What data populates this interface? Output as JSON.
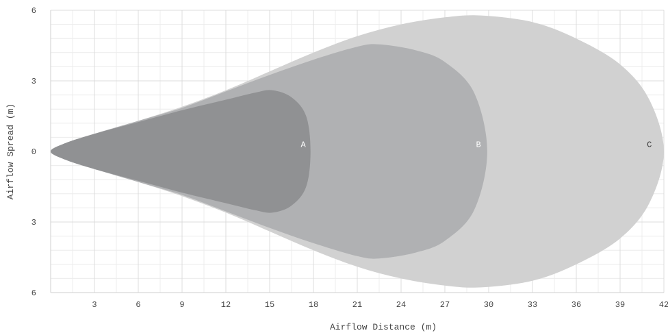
{
  "chart_data": {
    "type": "area",
    "xlabel": "Airflow Distance (m)",
    "ylabel": "Airflow Spread (m)",
    "xlim": [
      0,
      42
    ],
    "ylim": [
      -6,
      6
    ],
    "x_ticks": [
      3,
      6,
      9,
      12,
      15,
      18,
      21,
      24,
      27,
      30,
      33,
      36,
      39,
      42
    ],
    "y_ticks": [
      {
        "value": 6,
        "label": "6"
      },
      {
        "value": 3,
        "label": "3"
      },
      {
        "value": 0,
        "label": "0"
      },
      {
        "value": -3,
        "label": "3"
      },
      {
        "value": -6,
        "label": "6"
      }
    ],
    "grid": true,
    "zones": [
      {
        "name": "C",
        "color": "#d1d1d1",
        "label_position": [
          41,
          0.3
        ],
        "outline": [
          [
            0,
            0
          ],
          [
            1,
            0.35
          ],
          [
            3,
            0.75
          ],
          [
            6,
            1.3
          ],
          [
            9,
            1.9
          ],
          [
            12,
            2.6
          ],
          [
            15,
            3.4
          ],
          [
            18,
            4.2
          ],
          [
            21,
            4.9
          ],
          [
            24,
            5.4
          ],
          [
            27,
            5.7
          ],
          [
            29.5,
            5.78
          ],
          [
            33,
            5.5
          ],
          [
            36,
            4.8
          ],
          [
            39,
            3.7
          ],
          [
            41,
            2.2
          ],
          [
            42,
            0
          ]
        ]
      },
      {
        "name": "B",
        "color": "#b0b1b3",
        "label_position": [
          29.3,
          0.3
        ],
        "outline": [
          [
            0,
            0
          ],
          [
            1,
            0.35
          ],
          [
            3,
            0.75
          ],
          [
            6,
            1.3
          ],
          [
            9,
            1.85
          ],
          [
            12,
            2.55
          ],
          [
            15,
            3.25
          ],
          [
            18,
            3.9
          ],
          [
            21,
            4.45
          ],
          [
            22.5,
            4.55
          ],
          [
            25,
            4.3
          ],
          [
            27,
            3.8
          ],
          [
            29,
            2.5
          ],
          [
            29.9,
            0
          ]
        ]
      },
      {
        "name": "A",
        "color": "#909193",
        "label_position": [
          17.3,
          0.3
        ],
        "outline": [
          [
            0,
            0
          ],
          [
            1,
            0.35
          ],
          [
            3,
            0.75
          ],
          [
            6,
            1.25
          ],
          [
            9,
            1.75
          ],
          [
            12,
            2.2
          ],
          [
            14,
            2.5
          ],
          [
            15.2,
            2.6
          ],
          [
            16.5,
            2.3
          ],
          [
            17.5,
            1.5
          ],
          [
            17.8,
            0
          ]
        ]
      }
    ]
  }
}
